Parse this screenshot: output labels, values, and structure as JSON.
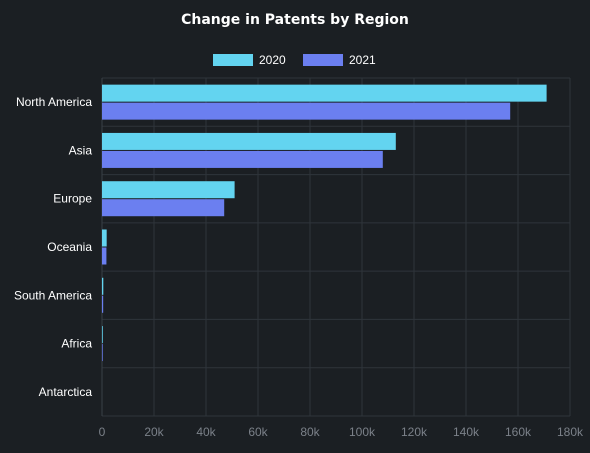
{
  "chart_data": {
    "type": "bar",
    "orientation": "horizontal",
    "title": "Change in Patents by Region",
    "categories": [
      "North America",
      "Asia",
      "Europe",
      "Oceania",
      "South America",
      "Africa",
      "Antarctica"
    ],
    "series": [
      {
        "name": "2020",
        "color": "#63d4f0",
        "values": [
          171000,
          113000,
          51000,
          1800,
          500,
          300,
          0
        ]
      },
      {
        "name": "2021",
        "color": "#6b7ff0",
        "values": [
          157000,
          108000,
          47000,
          1700,
          450,
          280,
          0
        ]
      }
    ],
    "xlim": [
      0,
      180000
    ],
    "x_ticks": [
      0,
      20000,
      40000,
      60000,
      80000,
      100000,
      120000,
      140000,
      160000,
      180000
    ],
    "x_tick_labels": [
      "0",
      "20k",
      "40k",
      "60k",
      "80k",
      "100k",
      "120k",
      "140k",
      "160k",
      "180k"
    ],
    "grid": true,
    "legend_position": "top"
  }
}
